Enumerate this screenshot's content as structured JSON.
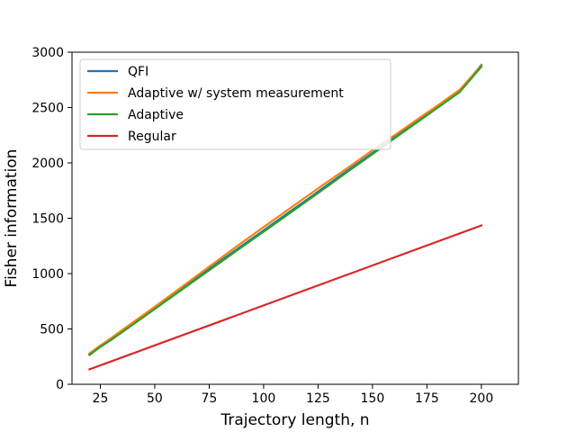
{
  "chart_data": {
    "type": "line",
    "xlabel": "Trajectory length, n",
    "ylabel": "Fisher information",
    "xlim": [
      12,
      217
    ],
    "ylim": [
      0,
      3000
    ],
    "xticks": [
      25,
      50,
      75,
      100,
      125,
      150,
      175,
      200
    ],
    "yticks": [
      0,
      500,
      1000,
      1500,
      2000,
      2500,
      3000
    ],
    "grid": false,
    "legend_position": "upper-left",
    "series": [
      {
        "name": "QFI",
        "color": "#1f77b4",
        "x": [
          20,
          25,
          30,
          40,
          50,
          60,
          70,
          80,
          90,
          100,
          110,
          120,
          130,
          140,
          150,
          160,
          170,
          180,
          190,
          200
        ],
        "y": [
          272,
          345,
          410,
          552,
          690,
          832,
          972,
          1112,
          1252,
          1390,
          1532,
          1670,
          1812,
          1952,
          2090,
          2230,
          2370,
          2508,
          2650,
          2885
        ]
      },
      {
        "name": "Adaptive w/ system measurement",
        "color": "#ff7f0e",
        "x": [
          20,
          25,
          30,
          40,
          50,
          60,
          70,
          80,
          90,
          100,
          110,
          120,
          130,
          140,
          150,
          160,
          170,
          180,
          190,
          200
        ],
        "y": [
          280,
          350,
          418,
          560,
          700,
          845,
          990,
          1135,
          1280,
          1420,
          1560,
          1700,
          1838,
          1975,
          2115,
          2248,
          2385,
          2520,
          2660,
          2880
        ]
      },
      {
        "name": "Adaptive",
        "color": "#2ca02c",
        "x": [
          20,
          25,
          30,
          40,
          50,
          60,
          70,
          80,
          90,
          100,
          110,
          120,
          130,
          140,
          150,
          160,
          170,
          180,
          190,
          200
        ],
        "y": [
          265,
          338,
          402,
          540,
          680,
          820,
          960,
          1100,
          1240,
          1378,
          1518,
          1658,
          1798,
          1940,
          2080,
          2220,
          2360,
          2500,
          2640,
          2870
        ]
      },
      {
        "name": "Regular",
        "color": "#d62728",
        "x": [
          20,
          200
        ],
        "y": [
          135,
          1435
        ]
      }
    ]
  }
}
